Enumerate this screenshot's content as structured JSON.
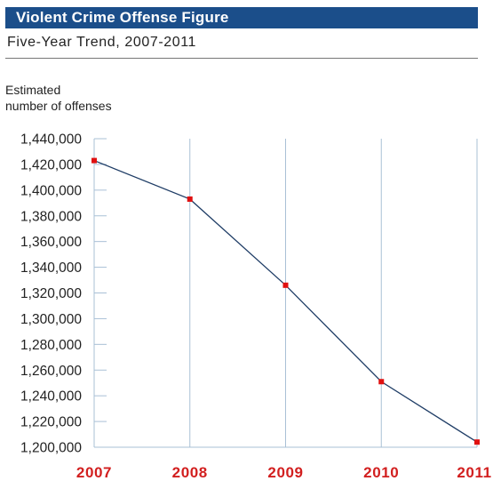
{
  "chart_data": {
    "type": "line",
    "title": "Violent Crime Offense Figure",
    "subtitle": "Five-Year Trend, 2007-2011",
    "ylabel_lines": [
      "Estimated",
      "number of offenses"
    ],
    "xlabel": "",
    "categories": [
      "2007",
      "2008",
      "2009",
      "2010",
      "2011"
    ],
    "series": [
      {
        "values": [
          1423000,
          1393000,
          1326000,
          1251000,
          1204000
        ]
      }
    ],
    "ylim": [
      1200000,
      1440000
    ],
    "yticks": [
      1440000,
      1420000,
      1400000,
      1380000,
      1360000,
      1340000,
      1320000,
      1300000,
      1280000,
      1260000,
      1240000,
      1220000,
      1200000
    ],
    "ytick_labels": [
      "1,440,000",
      "1,420,000",
      "1,400,000",
      "1,380,000",
      "1,360,000",
      "1,340,000",
      "1,320,000",
      "1,300,000",
      "1,280,000",
      "1,260,000",
      "1,240,000",
      "1,220,000",
      "1,200,000"
    ],
    "grid": "vertical",
    "colors": {
      "title_bar": "#1b4e8a",
      "line": "#1f3d66",
      "marker": "#e01010",
      "category_labels": "#d21f1f",
      "gridline": "#a9c0d6"
    }
  }
}
